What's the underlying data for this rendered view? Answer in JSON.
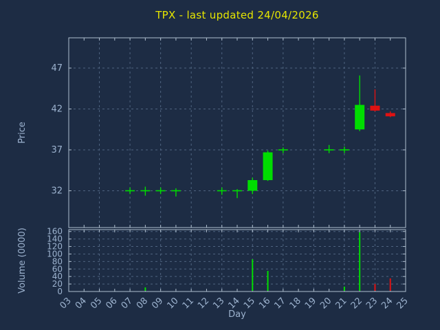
{
  "window": {
    "background": "#1d2c44"
  },
  "colors": {
    "title": "#e6e600",
    "text": "#9db3cf",
    "grid": "#4f6480",
    "border": "#b0bfcf",
    "up": "#00dd00",
    "down": "#e01212"
  },
  "chart_data": {
    "type": "candlestick",
    "title": "TPX - last updated 24/04/2026",
    "xlabel": "Day",
    "price_axis_label": "Price",
    "volume_axis_label": "Volume (0000)",
    "legend_position": "none",
    "grid": "dashed",
    "x_range": [
      3,
      25
    ],
    "price_range": [
      27.5,
      50.7
    ],
    "volume_range": [
      0,
      165
    ],
    "x_tick_labels": [
      "03",
      "04",
      "05",
      "06",
      "07",
      "08",
      "09",
      "10",
      "11",
      "12",
      "13",
      "14",
      "15",
      "16",
      "17",
      "18",
      "19",
      "20",
      "21",
      "22",
      "23",
      "24",
      "25"
    ],
    "price_ticks": [
      32,
      37,
      42,
      47
    ],
    "volume_ticks": [
      0,
      20,
      40,
      60,
      80,
      100,
      120,
      140,
      160
    ],
    "grid_x_days": [
      3,
      5,
      7,
      9,
      11,
      13,
      15,
      17,
      19,
      21,
      23,
      25
    ],
    "candles": [
      {
        "day": 7,
        "open": 32.0,
        "high": 32.4,
        "low": 31.6,
        "close": 32.0
      },
      {
        "day": 8,
        "open": 32.0,
        "high": 32.5,
        "low": 31.4,
        "close": 32.0
      },
      {
        "day": 9,
        "open": 32.0,
        "high": 32.4,
        "low": 31.6,
        "close": 32.0
      },
      {
        "day": 10,
        "open": 32.0,
        "high": 32.3,
        "low": 31.3,
        "close": 32.0
      },
      {
        "day": 13,
        "open": 32.0,
        "high": 32.4,
        "low": 31.5,
        "close": 32.0
      },
      {
        "day": 14,
        "open": 32.0,
        "high": 32.2,
        "low": 31.1,
        "close": 32.0
      },
      {
        "day": 15,
        "open": 32.0,
        "high": 33.6,
        "low": 31.6,
        "close": 33.3
      },
      {
        "day": 16,
        "open": 33.3,
        "high": 36.9,
        "low": 33.2,
        "close": 36.7
      },
      {
        "day": 17,
        "open": 37.0,
        "high": 37.3,
        "low": 36.6,
        "close": 37.0
      },
      {
        "day": 20,
        "open": 37.0,
        "high": 37.6,
        "low": 36.6,
        "close": 37.0
      },
      {
        "day": 21,
        "open": 37.0,
        "high": 37.4,
        "low": 36.6,
        "close": 37.0
      },
      {
        "day": 22,
        "open": 39.5,
        "high": 46.1,
        "low": 39.3,
        "close": 42.5
      },
      {
        "day": 23,
        "open": 42.4,
        "high": 44.4,
        "low": 41.7,
        "close": 41.8
      },
      {
        "day": 24,
        "open": 41.5,
        "high": 41.7,
        "low": 41.0,
        "close": 41.1
      }
    ],
    "volumes": [
      {
        "day": 8,
        "value": 11
      },
      {
        "day": 15,
        "value": 86
      },
      {
        "day": 16,
        "value": 55
      },
      {
        "day": 21,
        "value": 13
      },
      {
        "day": 22,
        "value": 158
      },
      {
        "day": 23,
        "value": 20
      },
      {
        "day": 24,
        "value": 35
      }
    ]
  }
}
